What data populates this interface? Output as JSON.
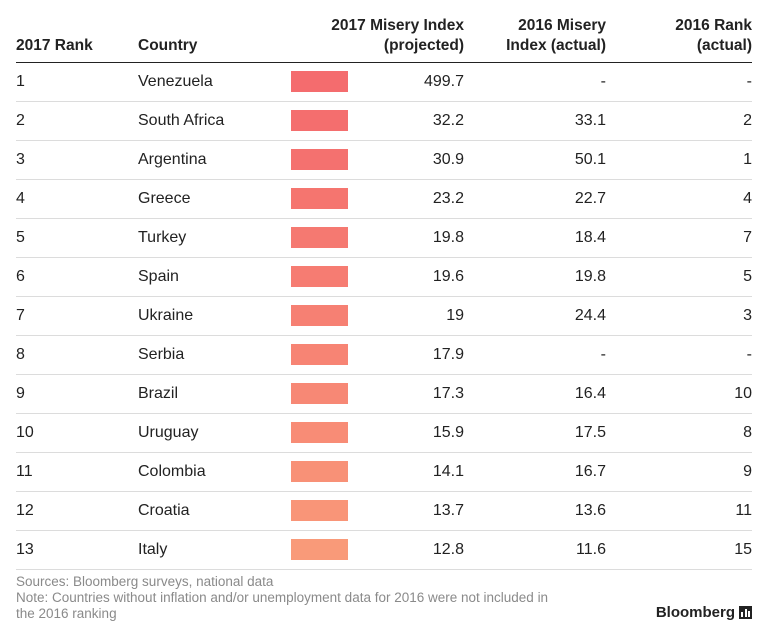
{
  "chart_data": {
    "type": "table",
    "columns": [
      "2017 Rank",
      "Country",
      "2017 Misery Index (projected)",
      "2016 Misery Index (actual)",
      "2016 Rank (actual)"
    ],
    "header": {
      "rank17": "2017 Rank",
      "country": "Country",
      "misery17_line1": "2017 Misery Index",
      "misery17_line2": "(projected)",
      "misery16_line1": "2016 Misery",
      "misery16_line2": "Index (actual)",
      "rank16_line1": "2016 Rank",
      "rank16_line2": "(actual)"
    },
    "rows": [
      {
        "rank17": "1",
        "country": "Venezuela",
        "misery17": "499.7",
        "misery16": "-",
        "rank16": "-",
        "bar_color": "#f46c6e"
      },
      {
        "rank17": "2",
        "country": "South Africa",
        "misery17": "32.2",
        "misery16": "33.1",
        "rank16": "2",
        "bar_color": "#f46e6e"
      },
      {
        "rank17": "3",
        "country": "Argentina",
        "misery17": "30.9",
        "misery16": "50.1",
        "rank16": "1",
        "bar_color": "#f4716f"
      },
      {
        "rank17": "4",
        "country": "Greece",
        "misery17": "23.2",
        "misery16": "22.7",
        "rank16": "4",
        "bar_color": "#f5756f"
      },
      {
        "rank17": "5",
        "country": "Turkey",
        "misery17": "19.8",
        "misery16": "18.4",
        "rank16": "7",
        "bar_color": "#f57971"
      },
      {
        "rank17": "6",
        "country": "Spain",
        "misery17": "19.6",
        "misery16": "19.8",
        "rank16": "5",
        "bar_color": "#f67c72"
      },
      {
        "rank17": "7",
        "country": "Ukraine",
        "misery17": "19",
        "misery16": "24.4",
        "rank16": "3",
        "bar_color": "#f68073"
      },
      {
        "rank17": "8",
        "country": "Serbia",
        "misery17": "17.9",
        "misery16": "-",
        "rank16": "-",
        "bar_color": "#f78474"
      },
      {
        "rank17": "9",
        "country": "Brazil",
        "misery17": "17.3",
        "misery16": "16.4",
        "rank16": "10",
        "bar_color": "#f78875"
      },
      {
        "rank17": "10",
        "country": "Uruguay",
        "misery17": "15.9",
        "misery16": "17.5",
        "rank16": "8",
        "bar_color": "#f88c76"
      },
      {
        "rank17": "11",
        "country": "Colombia",
        "misery17": "14.1",
        "misery16": "16.7",
        "rank16": "9",
        "bar_color": "#f89177"
      },
      {
        "rank17": "12",
        "country": "Croatia",
        "misery17": "13.7",
        "misery16": "13.6",
        "rank16": "11",
        "bar_color": "#f99578"
      },
      {
        "rank17": "13",
        "country": "Italy",
        "misery17": "12.8",
        "misery16": "11.6",
        "rank16": "15",
        "bar_color": "#f99a79"
      }
    ]
  },
  "footer": {
    "sources": "Sources: Bloomberg surveys, national data",
    "note_line1": "Note: Countries without inflation and/or unemployment data for 2016 were not included in",
    "note_line2": "the 2016 ranking"
  },
  "logo": {
    "text": "Bloomberg",
    "icon": "bloomberg-chart-icon"
  }
}
